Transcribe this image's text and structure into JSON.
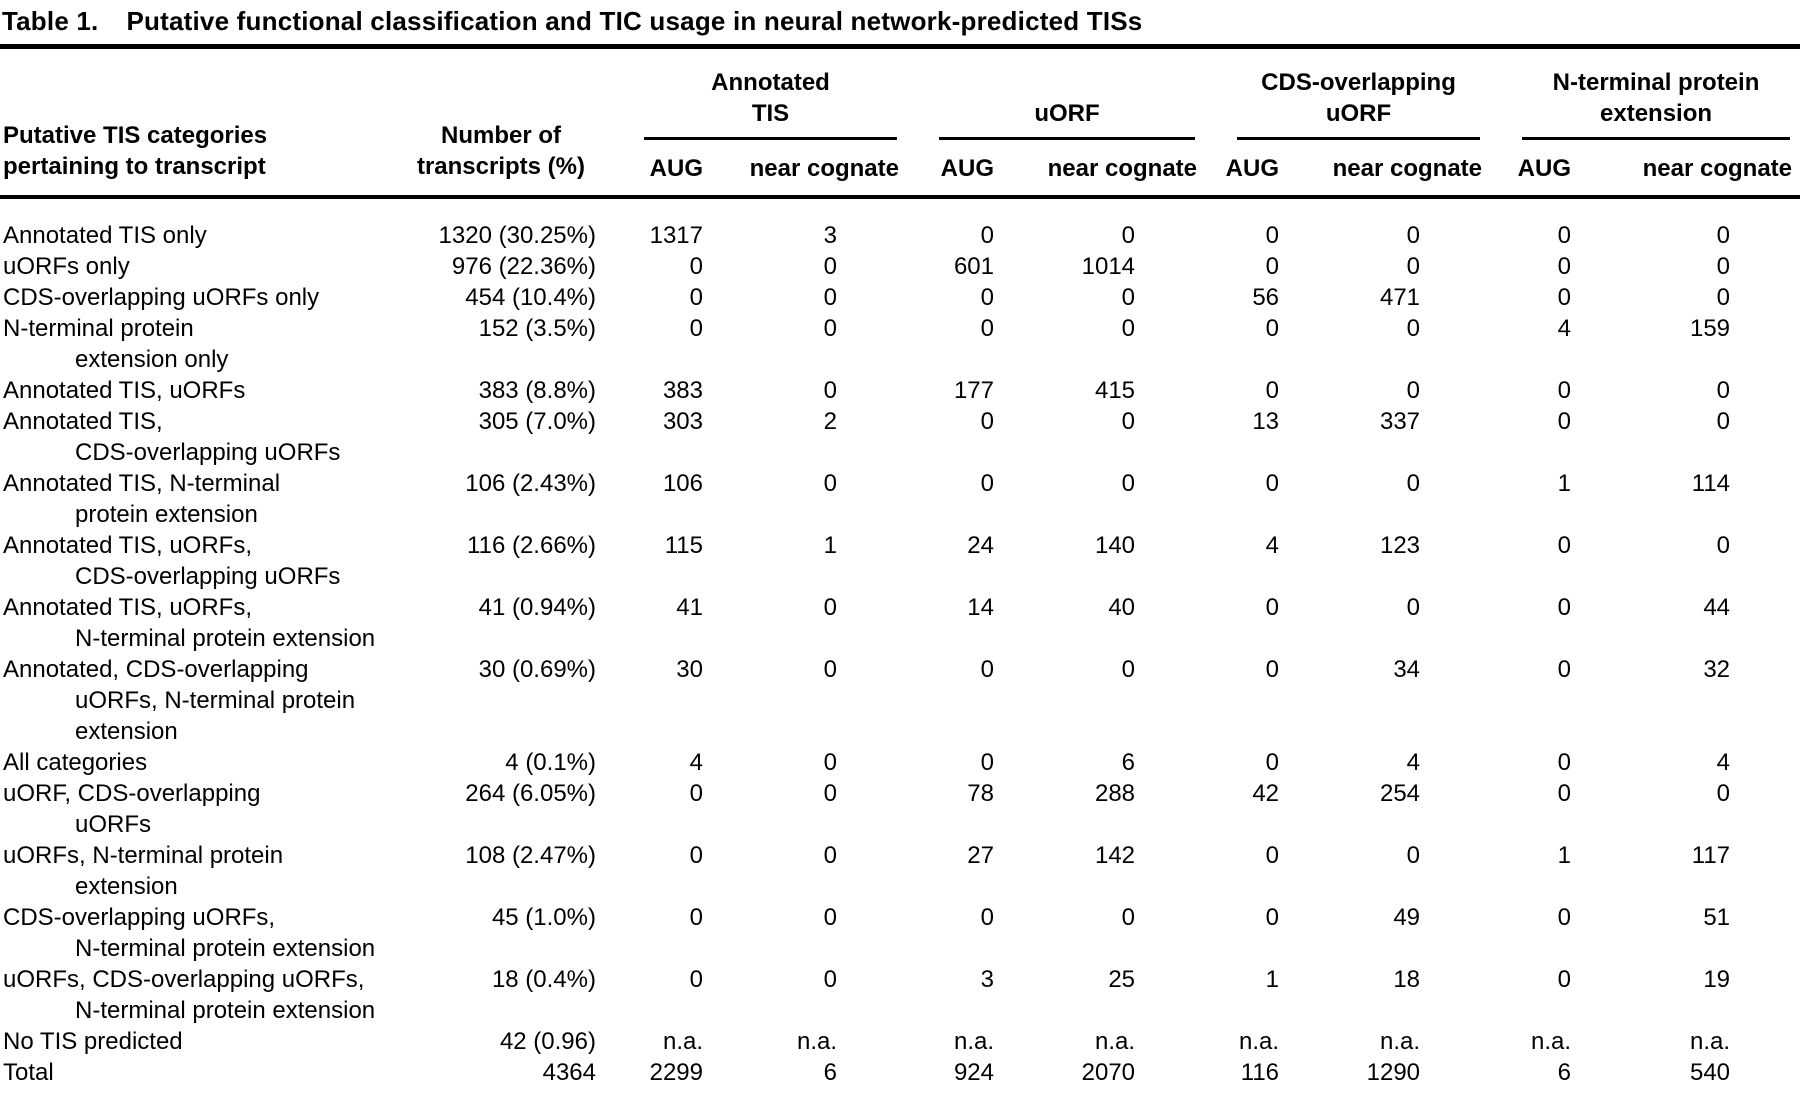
{
  "title": {
    "label": "Table 1.",
    "text": "Putative functional classification and TIC usage in neural network-predicted TISs"
  },
  "header": {
    "category": "Putative TIS categories\npertaining to transcript",
    "transcripts": "Number of\ntranscripts (%)",
    "groups": [
      {
        "label": "Annotated\nTIS",
        "sub": [
          "AUG",
          "near cognate"
        ]
      },
      {
        "label": "uORF",
        "sub": [
          "AUG",
          "near cognate"
        ]
      },
      {
        "label": "CDS-overlapping\nuORF",
        "sub": [
          "AUG",
          "near cognate"
        ]
      },
      {
        "label": "N-terminal protein\nextension",
        "sub": [
          "AUG",
          "near cognate"
        ]
      }
    ]
  },
  "rows": [
    {
      "category": "Annotated TIS only",
      "transcripts": "1320 (30.25%)",
      "values": [
        "1317",
        "3",
        "0",
        "0",
        "0",
        "0",
        "0",
        "0"
      ]
    },
    {
      "category": "uORFs only",
      "transcripts": "976 (22.36%)",
      "values": [
        "0",
        "0",
        "601",
        "1014",
        "0",
        "0",
        "0",
        "0"
      ]
    },
    {
      "category": "CDS-overlapping uORFs only",
      "transcripts": "454 (10.4%)",
      "values": [
        "0",
        "0",
        "0",
        "0",
        "56",
        "471",
        "0",
        "0"
      ]
    },
    {
      "category": "N-terminal protein\nextension only",
      "transcripts": "152 (3.5%)",
      "values": [
        "0",
        "0",
        "0",
        "0",
        "0",
        "0",
        "4",
        "159"
      ]
    },
    {
      "category": "Annotated TIS, uORFs",
      "transcripts": "383 (8.8%)",
      "values": [
        "383",
        "0",
        "177",
        "415",
        "0",
        "0",
        "0",
        "0"
      ]
    },
    {
      "category": "Annotated TIS,\nCDS-overlapping uORFs",
      "transcripts": "305 (7.0%)",
      "values": [
        "303",
        "2",
        "0",
        "0",
        "13",
        "337",
        "0",
        "0"
      ]
    },
    {
      "category": "Annotated TIS, N-terminal\nprotein extension",
      "transcripts": "106 (2.43%)",
      "values": [
        "106",
        "0",
        "0",
        "0",
        "0",
        "0",
        "1",
        "114"
      ]
    },
    {
      "category": "Annotated TIS, uORFs,\nCDS-overlapping uORFs",
      "transcripts": "116 (2.66%)",
      "values": [
        "115",
        "1",
        "24",
        "140",
        "4",
        "123",
        "0",
        "0"
      ]
    },
    {
      "category": "Annotated TIS, uORFs,\nN-terminal protein extension",
      "transcripts": "41 (0.94%)",
      "values": [
        "41",
        "0",
        "14",
        "40",
        "0",
        "0",
        "0",
        "44"
      ]
    },
    {
      "category": "Annotated, CDS-overlapping\nuORFs, N-terminal protein\nextension",
      "transcripts": "30 (0.69%)",
      "values": [
        "30",
        "0",
        "0",
        "0",
        "0",
        "34",
        "0",
        "32"
      ]
    },
    {
      "category": "All categories",
      "transcripts": "4 (0.1%)",
      "values": [
        "4",
        "0",
        "0",
        "6",
        "0",
        "4",
        "0",
        "4"
      ]
    },
    {
      "category": "uORF, CDS-overlapping\nuORFs",
      "transcripts": "264 (6.05%)",
      "values": [
        "0",
        "0",
        "78",
        "288",
        "42",
        "254",
        "0",
        "0"
      ]
    },
    {
      "category": "uORFs, N-terminal protein\nextension",
      "transcripts": "108 (2.47%)",
      "values": [
        "0",
        "0",
        "27",
        "142",
        "0",
        "0",
        "1",
        "117"
      ]
    },
    {
      "category": "CDS-overlapping uORFs,\nN-terminal protein extension",
      "transcripts": "45 (1.0%)",
      "values": [
        "0",
        "0",
        "0",
        "0",
        "0",
        "49",
        "0",
        "51"
      ]
    },
    {
      "category": "uORFs, CDS-overlapping uORFs,\nN-terminal protein extension",
      "transcripts": "18 (0.4%)",
      "values": [
        "0",
        "0",
        "3",
        "25",
        "1",
        "18",
        "0",
        "19"
      ]
    },
    {
      "category": "No TIS predicted",
      "transcripts": "42 (0.96)",
      "values": [
        "n.a.",
        "n.a.",
        "n.a.",
        "n.a.",
        "n.a.",
        "n.a.",
        "n.a.",
        "n.a."
      ]
    },
    {
      "category": "Total",
      "transcripts": "4364",
      "values": [
        "2299",
        "6",
        "924",
        "2070",
        "116",
        "1290",
        "6",
        "540"
      ]
    }
  ],
  "colors": {
    "text": "#000000",
    "background": "#ffffff",
    "rule": "#000000"
  }
}
